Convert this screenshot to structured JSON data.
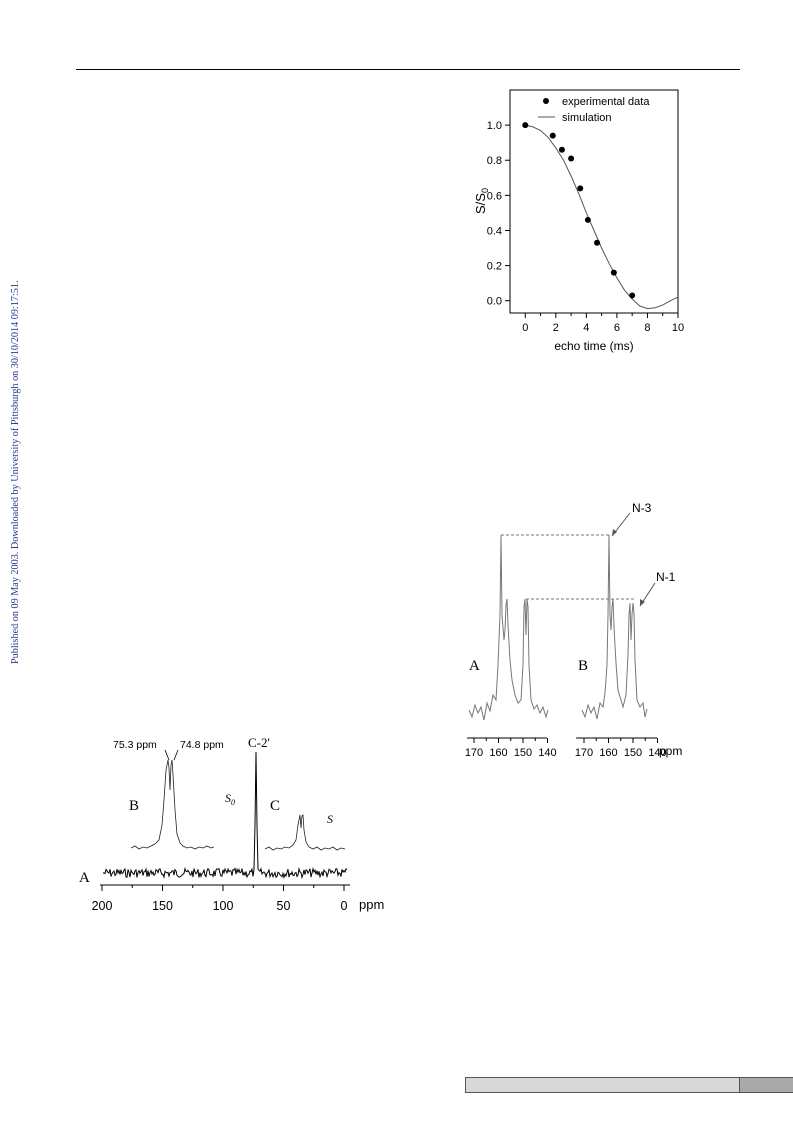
{
  "margin_note": "Published on 09 May 2003. Downloaded by University of Pittsburgh on 30/10/2014 09:17:51.",
  "figure_echo": {
    "chart_data": {
      "type": "scatter",
      "xlabel": "echo time (ms)",
      "ylabel": "S/S0",
      "xlim": [
        -1,
        10
      ],
      "ylim": [
        -0.07,
        1.2
      ],
      "xticks": [
        "0",
        "2",
        "4",
        "6",
        "8",
        "10"
      ],
      "yticks": [
        "0.0",
        "0.2",
        "0.4",
        "0.6",
        "0.8",
        "1.0"
      ],
      "legend_position": "top-right",
      "series": [
        {
          "name": "experimental data",
          "kind": "points",
          "x": [
            0,
            1.8,
            2.4,
            3.0,
            3.6,
            4.1,
            4.7,
            5.8,
            7.0
          ],
          "y": [
            1.0,
            0.94,
            0.86,
            0.81,
            0.64,
            0.46,
            0.33,
            0.16,
            0.03
          ]
        },
        {
          "name": "simulation",
          "kind": "line",
          "x": [
            0,
            0.5,
            1,
            1.5,
            2,
            2.5,
            3,
            3.5,
            4,
            4.5,
            5,
            5.5,
            6,
            6.5,
            7,
            7.5,
            8,
            8.5,
            9,
            9.5,
            10
          ],
          "y": [
            1.0,
            0.99,
            0.97,
            0.93,
            0.87,
            0.8,
            0.71,
            0.61,
            0.5,
            0.4,
            0.3,
            0.21,
            0.13,
            0.06,
            0.01,
            -0.03,
            -0.045,
            -0.04,
            -0.025,
            0.0,
            0.02
          ]
        }
      ]
    }
  },
  "figure_nitrogen": {
    "tick_labels_a": [
      "170",
      "160",
      "150",
      "140"
    ],
    "tick_labels_b": [
      "170",
      "160",
      "150",
      "140"
    ],
    "unit": "ppm",
    "panel_a": "A",
    "panel_b": "B",
    "label_n3": "N-3",
    "label_n1": "N-1"
  },
  "figure_carbon": {
    "tick_labels": [
      "200",
      "150",
      "100",
      "50",
      "0"
    ],
    "unit": "ppm",
    "panel_a": "A",
    "panel_b": "B",
    "panel_c": "C",
    "label_s0": "S0",
    "label_s": "S",
    "label_peak1": "75.3 ppm",
    "label_peak2": "74.8 ppm",
    "label_c2": "C-2'"
  }
}
